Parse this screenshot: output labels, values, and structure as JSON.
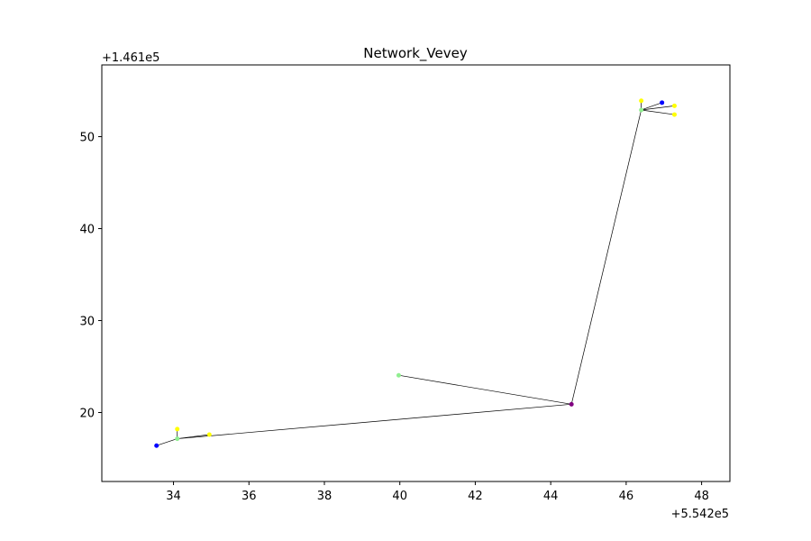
{
  "chart_data": {
    "type": "line",
    "title": "Network_Vevey",
    "xlabel": "",
    "ylabel": "",
    "x_offset_label": "+5.542e5",
    "y_offset_label": "+1.461e5",
    "xlim": [
      32.1,
      48.75
    ],
    "ylim": [
      12.5,
      57.8
    ],
    "x_ticks": [
      34,
      36,
      38,
      40,
      42,
      44,
      46,
      48
    ],
    "y_ticks": [
      20,
      30,
      40,
      50
    ],
    "grid": false,
    "nodes": [
      {
        "id": "purple-hub",
        "x": 44.55,
        "y": 20.9,
        "color": "#800080"
      },
      {
        "id": "green-center",
        "x": 39.97,
        "y": 24.05,
        "color": "#90ee90"
      },
      {
        "id": "green-sw-hub",
        "x": 34.1,
        "y": 17.15,
        "color": "#90ee90"
      },
      {
        "id": "blue-sw",
        "x": 33.55,
        "y": 16.4,
        "color": "#0000ff"
      },
      {
        "id": "yellow-sw-top",
        "x": 34.1,
        "y": 18.2,
        "color": "#ffff00"
      },
      {
        "id": "yellow-sw-right",
        "x": 34.95,
        "y": 17.6,
        "color": "#ffff00"
      },
      {
        "id": "green-ne-hub",
        "x": 46.4,
        "y": 52.9,
        "color": "#90ee90"
      },
      {
        "id": "yellow-ne-top",
        "x": 46.4,
        "y": 53.9,
        "color": "#ffff00"
      },
      {
        "id": "blue-ne",
        "x": 46.95,
        "y": 53.7,
        "color": "#0000ff"
      },
      {
        "id": "yellow-ne-1",
        "x": 47.28,
        "y": 53.35,
        "color": "#ffff00"
      },
      {
        "id": "yellow-ne-2",
        "x": 47.28,
        "y": 52.4,
        "color": "#ffff00"
      }
    ],
    "edges": [
      [
        "green-center",
        "purple-hub"
      ],
      [
        "purple-hub",
        "green-sw-hub"
      ],
      [
        "purple-hub",
        "green-ne-hub"
      ],
      [
        "green-sw-hub",
        "blue-sw"
      ],
      [
        "green-sw-hub",
        "yellow-sw-top"
      ],
      [
        "green-sw-hub",
        "yellow-sw-right"
      ],
      [
        "green-ne-hub",
        "yellow-ne-top"
      ],
      [
        "green-ne-hub",
        "blue-ne"
      ],
      [
        "green-ne-hub",
        "yellow-ne-1"
      ],
      [
        "green-ne-hub",
        "yellow-ne-2"
      ]
    ]
  }
}
